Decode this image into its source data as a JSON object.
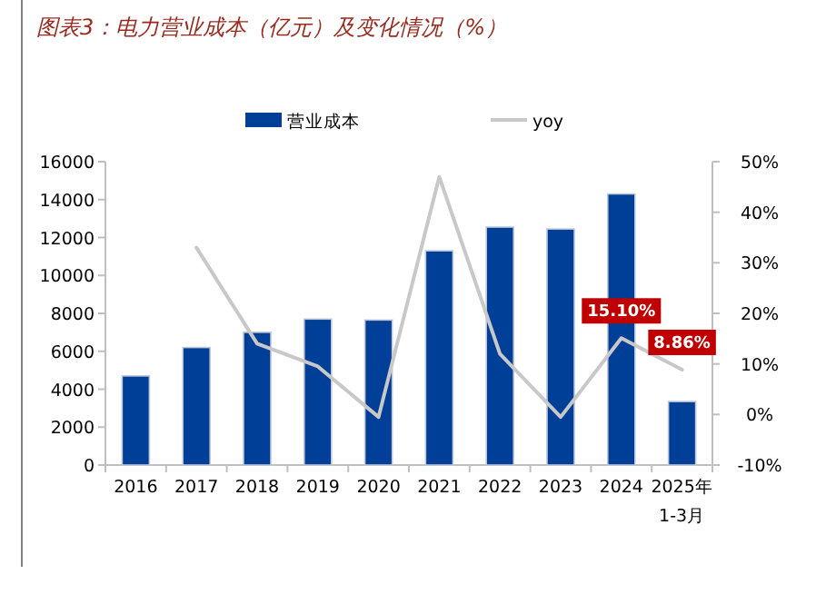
{
  "chart_data": {
    "type": "bar",
    "title": "图表3：电力营业成本（亿元）及变化情况（%）",
    "categories": [
      "2016",
      "2017",
      "2018",
      "2019",
      "2020",
      "2021",
      "2022",
      "2023",
      "2024",
      "2025年1-3月"
    ],
    "series": [
      {
        "name": "营业成本",
        "color": "#003f98",
        "values": [
          4700,
          6200,
          7000,
          7700,
          7650,
          11300,
          12550,
          12450,
          14300,
          3350
        ]
      },
      {
        "name": "yoy",
        "type": "line",
        "axis": "y2",
        "color": "#c8c8c8",
        "values": [
          null,
          33,
          14,
          9.5,
          -0.5,
          47,
          12,
          -0.5,
          15.1,
          8.86
        ],
        "value_labels": [
          null,
          null,
          null,
          null,
          null,
          null,
          null,
          null,
          "15.10%",
          "8.86%"
        ]
      }
    ],
    "ylim": [
      0,
      16000
    ],
    "yticks": [
      0,
      2000,
      4000,
      6000,
      8000,
      10000,
      12000,
      14000,
      16000
    ],
    "y2lim": [
      -10,
      50
    ],
    "y2ticks": [
      {
        "value": -10,
        "label": "-10%"
      },
      {
        "value": 0,
        "label": "0%"
      },
      {
        "value": 10,
        "label": "10%"
      },
      {
        "value": 20,
        "label": "20%"
      },
      {
        "value": 30,
        "label": "30%"
      },
      {
        "value": 40,
        "label": "40%"
      },
      {
        "value": 50,
        "label": "50%"
      }
    ],
    "legend": "top",
    "grid": false
  }
}
